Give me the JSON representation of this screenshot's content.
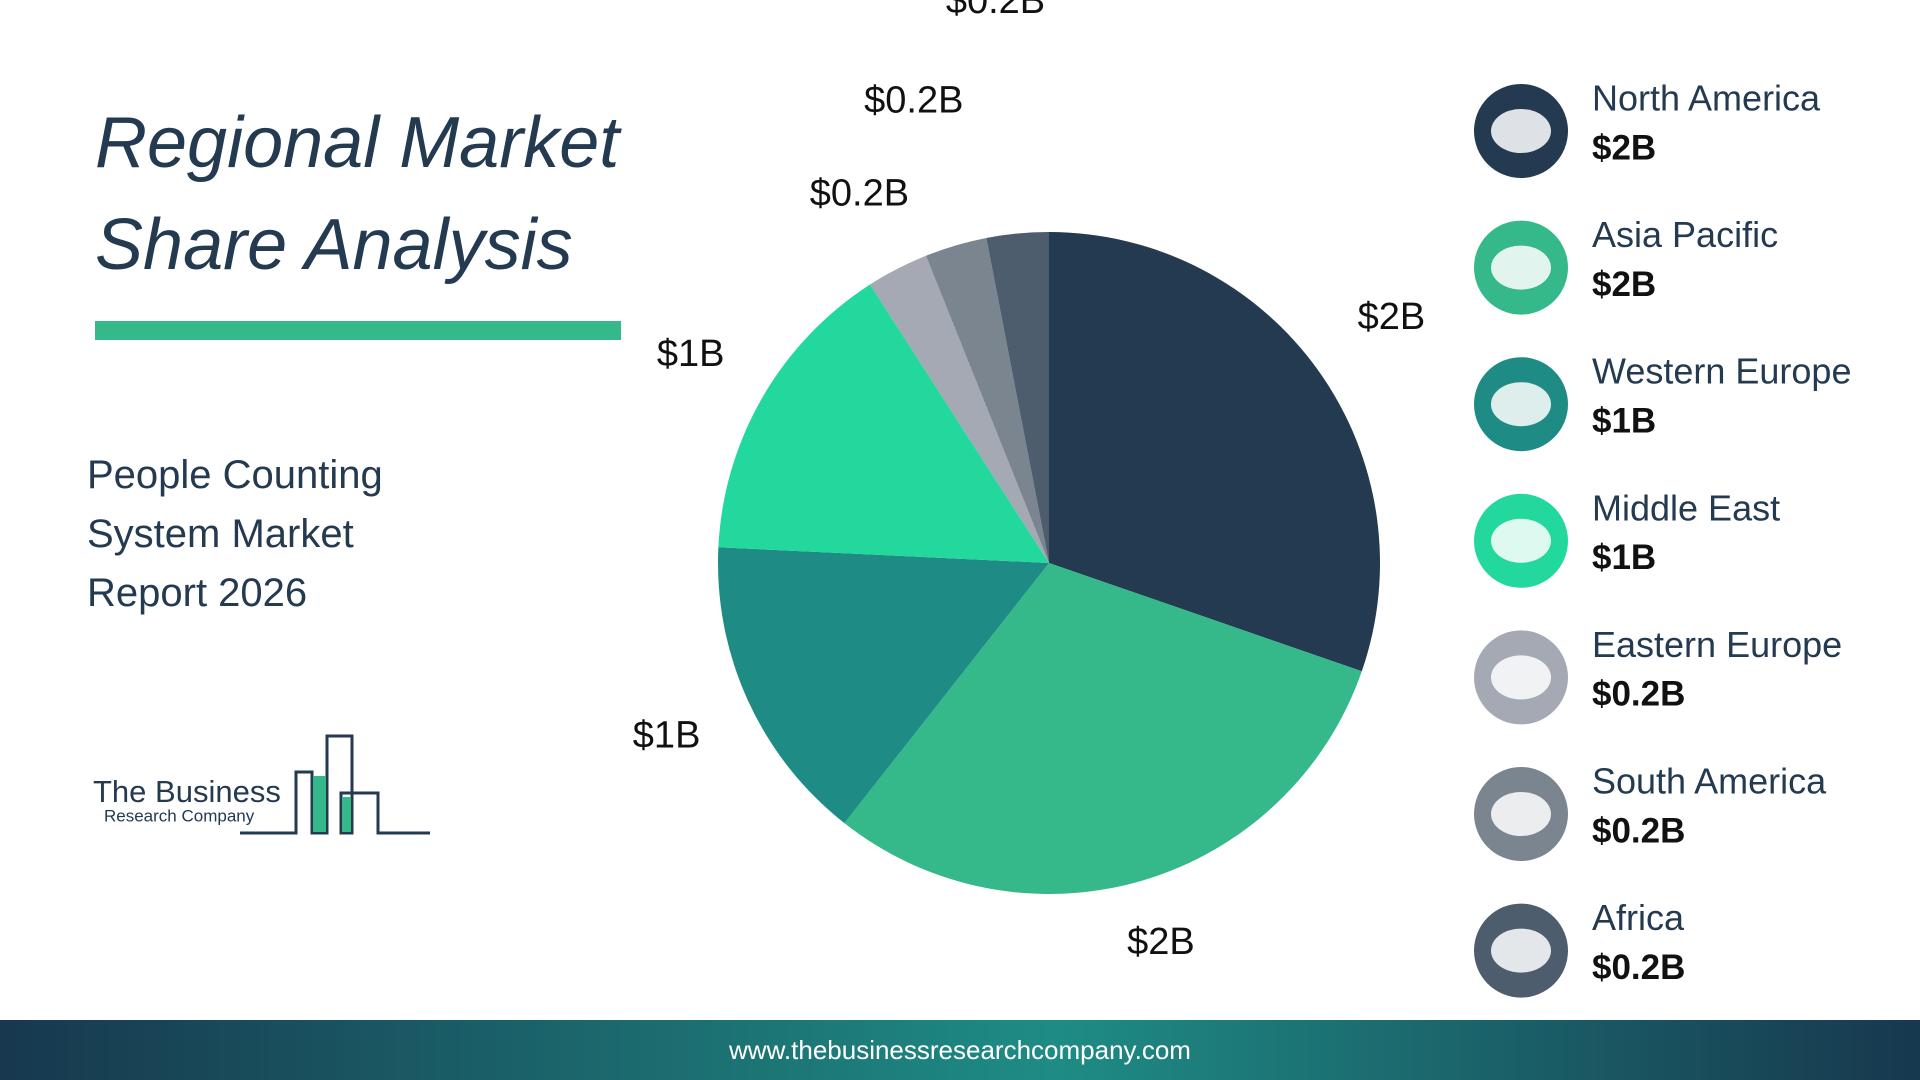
{
  "chart_data": {
    "type": "pie",
    "title": "Regional Market Share Analysis",
    "subtitle": "People Counting System Market Report 2026",
    "categories": [
      "North America",
      "Asia Pacific",
      "Western Europe",
      "Middle East",
      "Eastern Europe",
      "South America",
      "Africa"
    ],
    "values": [
      2,
      2,
      1,
      1,
      0.2,
      0.2,
      0.2
    ],
    "value_labels": [
      "$2B",
      "$2B",
      "$1B",
      "$1B",
      "$0.2B",
      "$0.2B",
      "$0.2B"
    ],
    "colors": [
      "#243a50",
      "#35b88a",
      "#1e8c84",
      "#22d89c",
      "#a4a9b4",
      "#7a8590",
      "#4d5d6e"
    ],
    "legend": "right"
  },
  "logo": {
    "line1": "The Business",
    "line2": "Research Company"
  },
  "footer": {
    "url": "www.thebusinessresearchcompany.com"
  }
}
